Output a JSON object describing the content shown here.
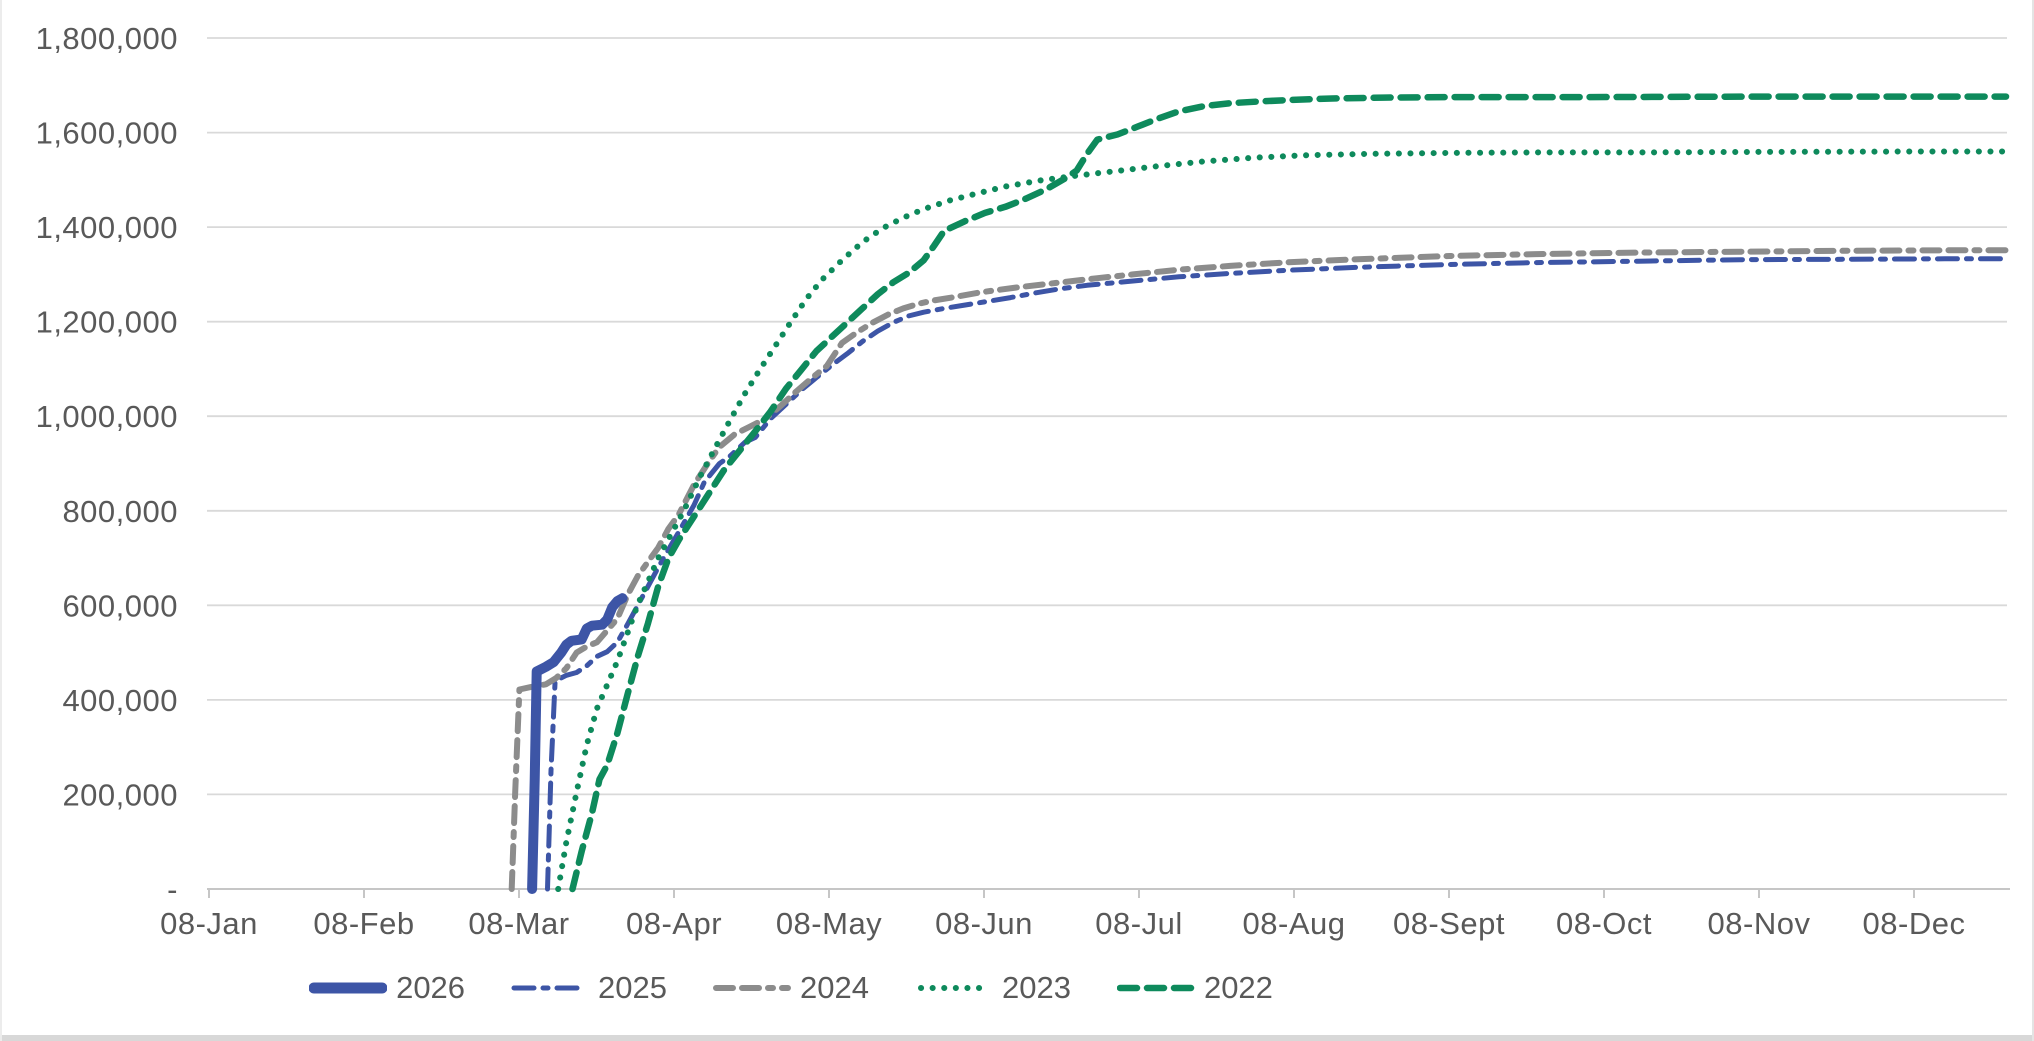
{
  "chart_data": {
    "type": "line",
    "title": "",
    "grid": "horizontal",
    "legend_position": "bottom",
    "x_axis": {
      "tick_labels": [
        "08-Jan",
        "08-Feb",
        "08-Mar",
        "08-Apr",
        "08-May",
        "08-Jun",
        "08-Jul",
        "08-Aug",
        "08-Sept",
        "08-Oct",
        "08-Nov",
        "08-Dec"
      ],
      "unit": "date (day-month)"
    },
    "y_axis": {
      "min": 0,
      "max": 1800000,
      "tick_values": [
        0,
        200000,
        400000,
        600000,
        800000,
        1000000,
        1200000,
        1400000,
        1600000,
        1800000
      ],
      "tick_labels": [
        "-",
        "200,000",
        "400,000",
        "600,000",
        "800,000",
        "1,000,000",
        "1,200,000",
        "1,400,000",
        "1,600,000",
        "1,800,000"
      ]
    },
    "series": [
      {
        "name": "2026",
        "color": "#3D55A6",
        "style": "solid-thick",
        "points_format": "[days_since_jan8, value]",
        "points": [
          [
            63.3,
            0
          ],
          [
            63.8,
            230000
          ],
          [
            64.2,
            460000
          ],
          [
            66,
            470000
          ],
          [
            67.5,
            480000
          ],
          [
            69,
            500000
          ],
          [
            70,
            517000
          ],
          [
            71,
            525000
          ],
          [
            73,
            528000
          ],
          [
            74,
            551000
          ],
          [
            75,
            557000
          ],
          [
            77,
            559000
          ],
          [
            78,
            570000
          ],
          [
            79,
            596000
          ],
          [
            80,
            609000
          ],
          [
            81,
            615000
          ]
        ]
      },
      {
        "name": "2025",
        "color": "#3D55A6",
        "style": "dash-dot",
        "points": [
          [
            66.3,
            0
          ],
          [
            67,
            250000
          ],
          [
            67.8,
            440000
          ],
          [
            70,
            452000
          ],
          [
            72,
            458000
          ],
          [
            74,
            472000
          ],
          [
            76,
            492000
          ],
          [
            78,
            502000
          ],
          [
            80,
            522000
          ],
          [
            82,
            560000
          ],
          [
            84,
            600000
          ],
          [
            86,
            640000
          ],
          [
            88,
            680000
          ],
          [
            90,
            718000
          ],
          [
            92,
            755000
          ],
          [
            95,
            812000
          ],
          [
            97,
            860000
          ],
          [
            100,
            900000
          ],
          [
            102,
            915000
          ],
          [
            105,
            945000
          ],
          [
            107,
            955000
          ],
          [
            110,
            995000
          ],
          [
            113,
            1025000
          ],
          [
            116,
            1055000
          ],
          [
            119,
            1082000
          ],
          [
            122,
            1108000
          ],
          [
            125,
            1132000
          ],
          [
            128,
            1158000
          ],
          [
            131,
            1180000
          ],
          [
            134,
            1198000
          ],
          [
            137,
            1212000
          ],
          [
            140,
            1220000
          ],
          [
            144,
            1228000
          ],
          [
            148,
            1235000
          ],
          [
            152,
            1242000
          ],
          [
            157,
            1251000
          ],
          [
            162,
            1261000
          ],
          [
            167,
            1270000
          ],
          [
            172,
            1277000
          ],
          [
            177,
            1282000
          ],
          [
            181,
            1286000
          ],
          [
            190,
            1295000
          ],
          [
            200,
            1302000
          ],
          [
            212,
            1309000
          ],
          [
            225,
            1315000
          ],
          [
            243,
            1321000
          ],
          [
            260,
            1325000
          ],
          [
            280,
            1328000
          ],
          [
            300,
            1331000
          ],
          [
            320,
            1332000
          ],
          [
            340,
            1333000
          ],
          [
            352,
            1333000
          ]
        ]
      },
      {
        "name": "2024",
        "color": "#8C8C8C",
        "style": "dash-dash-dot",
        "points": [
          [
            59.3,
            0
          ],
          [
            60,
            210000
          ],
          [
            60.8,
            422000
          ],
          [
            63,
            427000
          ],
          [
            66,
            433000
          ],
          [
            68,
            446000
          ],
          [
            70,
            467000
          ],
          [
            72,
            500000
          ],
          [
            74,
            513000
          ],
          [
            76,
            522000
          ],
          [
            78,
            547000
          ],
          [
            80,
            572000
          ],
          [
            82,
            622000
          ],
          [
            84,
            662000
          ],
          [
            86,
            692000
          ],
          [
            88,
            722000
          ],
          [
            90,
            762000
          ],
          [
            92,
            792000
          ],
          [
            95,
            855000
          ],
          [
            98,
            905000
          ],
          [
            100,
            935000
          ],
          [
            103,
            962000
          ],
          [
            106,
            978000
          ],
          [
            109,
            995000
          ],
          [
            112,
            1022000
          ],
          [
            115,
            1052000
          ],
          [
            118,
            1080000
          ],
          [
            121,
            1106000
          ],
          [
            124,
            1155000
          ],
          [
            127,
            1178000
          ],
          [
            130,
            1198000
          ],
          [
            133,
            1215000
          ],
          [
            136,
            1228000
          ],
          [
            139,
            1238000
          ],
          [
            142,
            1245000
          ],
          [
            146,
            1252000
          ],
          [
            151,
            1262000
          ],
          [
            158,
            1272000
          ],
          [
            166,
            1282000
          ],
          [
            174,
            1292000
          ],
          [
            181,
            1300000
          ],
          [
            190,
            1310000
          ],
          [
            200,
            1318000
          ],
          [
            212,
            1326000
          ],
          [
            225,
            1332000
          ],
          [
            243,
            1339000
          ],
          [
            260,
            1343000
          ],
          [
            280,
            1346000
          ],
          [
            300,
            1348000
          ],
          [
            320,
            1350000
          ],
          [
            340,
            1351000
          ],
          [
            352,
            1351000
          ]
        ]
      },
      {
        "name": "2023",
        "color": "#0E8A5C",
        "style": "dotted",
        "points": [
          [
            68.4,
            0
          ],
          [
            70,
            100000
          ],
          [
            72,
            205000
          ],
          [
            74,
            305000
          ],
          [
            76,
            382000
          ],
          [
            78,
            432000
          ],
          [
            80,
            482000
          ],
          [
            82,
            542000
          ],
          [
            84,
            602000
          ],
          [
            86,
            650000
          ],
          [
            88,
            700000
          ],
          [
            90,
            740000
          ],
          [
            93,
            800000
          ],
          [
            96,
            868000
          ],
          [
            99,
            930000
          ],
          [
            102,
            990000
          ],
          [
            105,
            1048000
          ],
          [
            108,
            1100000
          ],
          [
            111,
            1150000
          ],
          [
            114,
            1200000
          ],
          [
            117,
            1248000
          ],
          [
            120,
            1288000
          ],
          [
            124,
            1330000
          ],
          [
            128,
            1368000
          ],
          [
            132,
            1398000
          ],
          [
            136,
            1420000
          ],
          [
            140,
            1438000
          ],
          [
            145,
            1456000
          ],
          [
            150,
            1470000
          ],
          [
            156,
            1486000
          ],
          [
            163,
            1499000
          ],
          [
            170,
            1509000
          ],
          [
            178,
            1519000
          ],
          [
            186,
            1529000
          ],
          [
            195,
            1539000
          ],
          [
            205,
            1547000
          ],
          [
            215,
            1552000
          ],
          [
            228,
            1555000
          ],
          [
            243,
            1557000
          ],
          [
            260,
            1558000
          ],
          [
            280,
            1558000
          ],
          [
            304,
            1559000
          ],
          [
            334,
            1560000
          ],
          [
            352,
            1560000
          ]
        ]
      },
      {
        "name": "2022",
        "color": "#0E8A5C",
        "style": "dashed",
        "points": [
          [
            71.2,
            0
          ],
          [
            73,
            80000
          ],
          [
            75,
            160000
          ],
          [
            76.5,
            232000
          ],
          [
            78,
            262000
          ],
          [
            80,
            330000
          ],
          [
            82,
            412000
          ],
          [
            84,
            492000
          ],
          [
            86,
            562000
          ],
          [
            88,
            640000
          ],
          [
            90,
            700000
          ],
          [
            92,
            738000
          ],
          [
            95,
            788000
          ],
          [
            98,
            838000
          ],
          [
            101,
            888000
          ],
          [
            104,
            928000
          ],
          [
            107,
            968000
          ],
          [
            110,
            1010000
          ],
          [
            113,
            1058000
          ],
          [
            116,
            1098000
          ],
          [
            119,
            1138000
          ],
          [
            122,
            1168000
          ],
          [
            125,
            1198000
          ],
          [
            128,
            1228000
          ],
          [
            131,
            1258000
          ],
          [
            134,
            1283000
          ],
          [
            137,
            1303000
          ],
          [
            140,
            1330000
          ],
          [
            142,
            1360000
          ],
          [
            144,
            1392000
          ],
          [
            148,
            1412000
          ],
          [
            152,
            1430000
          ],
          [
            156,
            1443000
          ],
          [
            160,
            1460000
          ],
          [
            164,
            1480000
          ],
          [
            168,
            1505000
          ],
          [
            170,
            1520000
          ],
          [
            172,
            1555000
          ],
          [
            174,
            1585000
          ],
          [
            178,
            1596000
          ],
          [
            182,
            1613000
          ],
          [
            186,
            1630000
          ],
          [
            190,
            1645000
          ],
          [
            195,
            1656000
          ],
          [
            200,
            1662000
          ],
          [
            206,
            1666000
          ],
          [
            212,
            1669000
          ],
          [
            220,
            1672000
          ],
          [
            230,
            1674000
          ],
          [
            243,
            1675000
          ],
          [
            270,
            1675000
          ],
          [
            304,
            1676000
          ],
          [
            334,
            1676000
          ],
          [
            352,
            1676000
          ]
        ]
      }
    ]
  },
  "legend": {
    "items": [
      "2026",
      "2025",
      "2024",
      "2023",
      "2022"
    ]
  },
  "styles": {
    "text_color": "#595959",
    "grid_color": "#D9D9D9",
    "axis_color": "#C6C6C6",
    "background": "#FFFFFF",
    "bottom_bar_color": "#D8D8D8"
  }
}
